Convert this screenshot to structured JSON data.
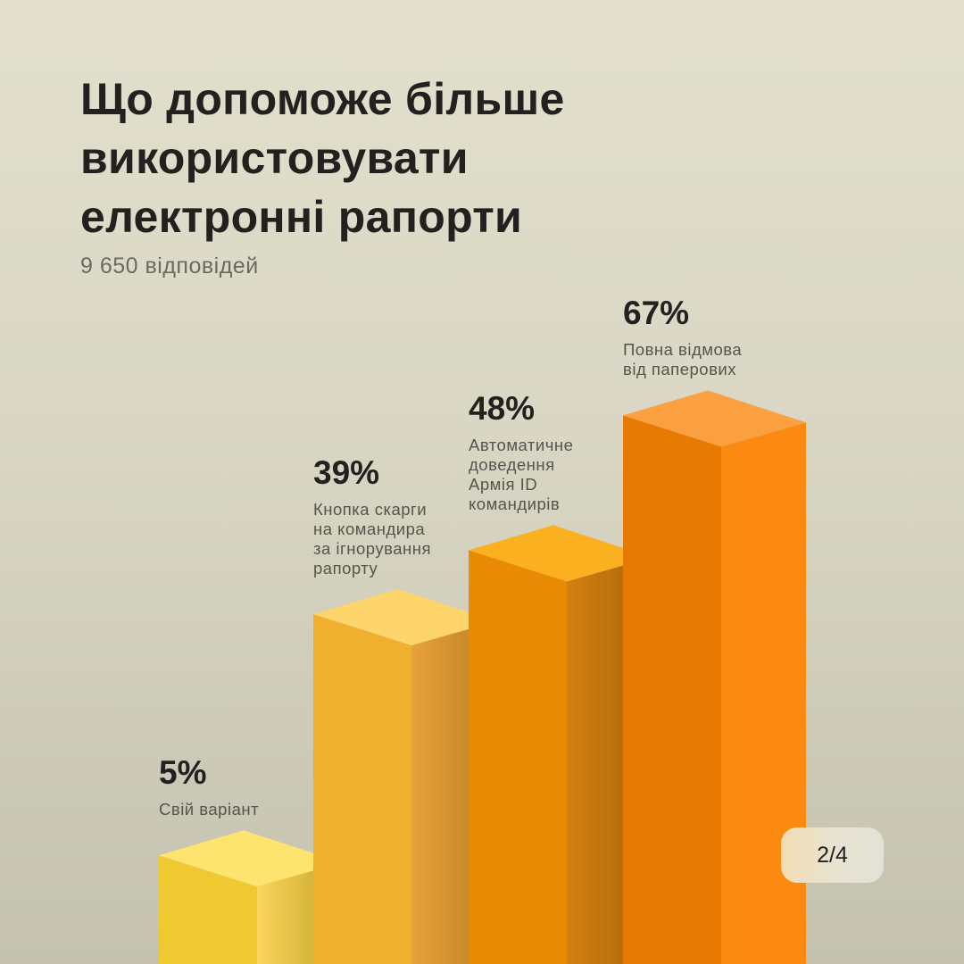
{
  "header": {
    "title_lines": [
      "Що допоможе більше",
      "використовувати",
      "електронні рапорти"
    ],
    "subtitle": "9 650 відповідей"
  },
  "pager": {
    "label": "2/4"
  },
  "chart_data": {
    "type": "bar",
    "title": "Що допоможе більше використовувати електронні рапорти",
    "subtitle": "9 650 відповідей",
    "categories": [
      "Свій варіант",
      "Кнопка скарги на командира за ігнорування рапорту",
      "Автоматичне доведення Армія ID командирів",
      "Повна відмова від паперових"
    ],
    "values": [
      5,
      39,
      48,
      67
    ],
    "value_labels": [
      "5%",
      "39%",
      "48%",
      "67%"
    ],
    "desc_lines": [
      [
        "Свій варіант"
      ],
      [
        "Кнопка скарги",
        "на командира",
        "за ігнорування",
        "рапорту"
      ],
      [
        "Автоматичне",
        "доведення",
        "Армія ID",
        "командирів"
      ],
      [
        "Повна відмова",
        "від паперових"
      ]
    ],
    "unit": "%",
    "colors": [
      {
        "front": "#f0c832",
        "top": "#fde46e",
        "side1": "#fbd45c",
        "side2": "#c4a62a"
      },
      {
        "front": "#efb030",
        "top": "#fdd56a",
        "side1": "#e6a23c",
        "side2": "#bd8020"
      },
      {
        "front": "#e88a04",
        "top": "#fbb020",
        "side1": "#d47f10",
        "side2": "#a86808"
      },
      {
        "front": "#e67a02",
        "top": "#fba040",
        "side1": "#fb8a10",
        "side2": "#fd8a10"
      }
    ]
  }
}
